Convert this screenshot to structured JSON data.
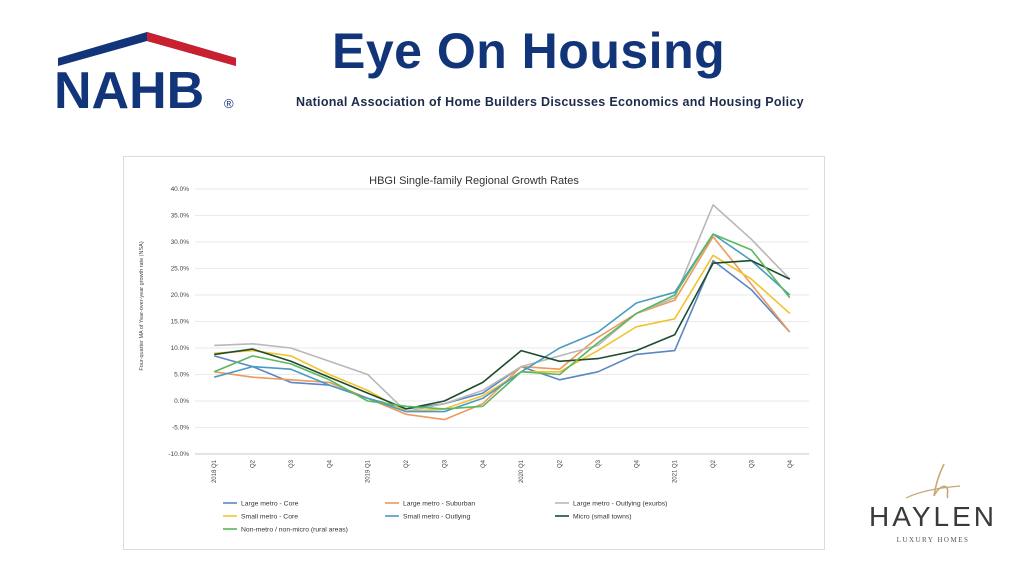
{
  "header": {
    "logo_text": "NAHB",
    "logo_registered": "®",
    "title": "Eye On Housing",
    "tagline": "National Association of Home Builders Discusses Economics and Housing Policy"
  },
  "brand": {
    "name": "HAYLEN",
    "sub": "LUXURY HOMES"
  },
  "colors": {
    "nahb_blue": "#12357a",
    "nahb_red": "#c8202f",
    "brand_gold": "#c9a876"
  },
  "chart_data": {
    "type": "line",
    "title": "HBGI Single-family Regional Growth Rates",
    "ylabel": "Four-quarter MA of Year-over-year growth rate (NSA)",
    "xlabel": "",
    "ylim": [
      -10,
      40
    ],
    "yticks": [
      "-10.0%",
      "-5.0%",
      "0.0%",
      "5.0%",
      "10.0%",
      "15.0%",
      "20.0%",
      "25.0%",
      "30.0%",
      "35.0%",
      "40.0%"
    ],
    "categories": [
      "2018 Q1",
      "Q2",
      "Q3",
      "Q4",
      "2019 Q1",
      "Q2",
      "Q3",
      "Q4",
      "2020 Q1",
      "Q2",
      "Q3",
      "Q4",
      "2021 Q1",
      "Q2",
      "Q3",
      "Q4"
    ],
    "grid": "horizontal",
    "legend_position": "bottom",
    "series": [
      {
        "name": "Large metro - Core",
        "color": "#5b87c4",
        "values": [
          8.5,
          6.5,
          3.5,
          3.0,
          0.5,
          -1.5,
          -0.5,
          1.5,
          6.5,
          4.0,
          5.5,
          8.8,
          9.5,
          26.5,
          21.0,
          13.0
        ]
      },
      {
        "name": "Large metro - Suburban",
        "color": "#ed9a5e",
        "values": [
          5.5,
          4.5,
          4.0,
          3.5,
          0.5,
          -2.5,
          -3.5,
          -0.5,
          6.5,
          6.0,
          12.0,
          16.5,
          19.0,
          31.0,
          22.0,
          13.0
        ]
      },
      {
        "name": "Large metro - Outlying (exurbs)",
        "color": "#b8b8b8",
        "values": [
          10.5,
          10.8,
          10.0,
          7.5,
          5.0,
          -2.0,
          -0.5,
          2.0,
          6.5,
          8.5,
          10.5,
          16.5,
          19.5,
          37.0,
          30.5,
          23.0
        ]
      },
      {
        "name": "Small metro - Core",
        "color": "#f2c330",
        "values": [
          9.0,
          9.5,
          8.5,
          5.0,
          2.0,
          -2.0,
          -1.5,
          1.0,
          5.5,
          5.5,
          9.5,
          14.0,
          15.5,
          27.5,
          23.0,
          16.5
        ]
      },
      {
        "name": "Small metro - Outlying",
        "color": "#4a9bc4",
        "values": [
          4.5,
          6.5,
          6.0,
          3.0,
          0.5,
          -2.0,
          -2.0,
          0.5,
          5.5,
          10.0,
          13.0,
          18.5,
          20.5,
          31.5,
          26.5,
          20.0
        ]
      },
      {
        "name": "Micro (small towns)",
        "color": "#1e4d2e",
        "values": [
          8.8,
          9.8,
          7.5,
          4.5,
          1.5,
          -1.5,
          0.0,
          3.5,
          9.5,
          7.5,
          8.0,
          9.5,
          12.5,
          26.0,
          26.5,
          23.0
        ]
      },
      {
        "name": "Non-metro / non-micro (rural areas)",
        "color": "#5cb85c",
        "values": [
          5.5,
          8.5,
          7.0,
          4.0,
          0.0,
          -1.0,
          -1.5,
          -1.0,
          5.5,
          5.0,
          11.0,
          16.5,
          20.0,
          31.5,
          28.5,
          19.5
        ]
      }
    ]
  }
}
